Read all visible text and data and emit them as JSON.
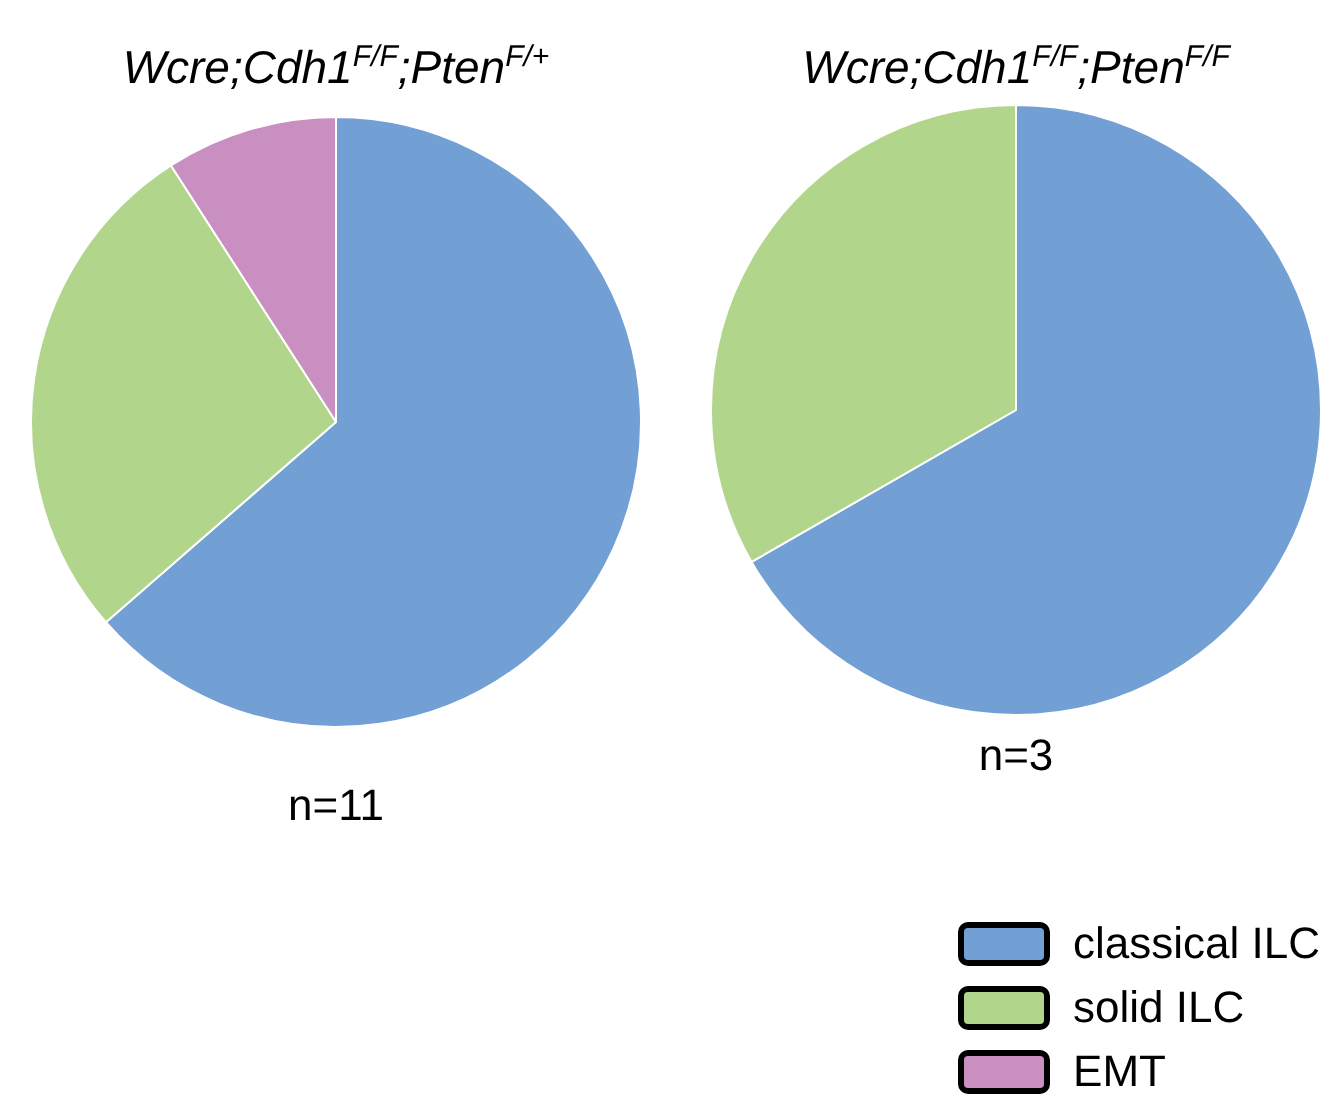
{
  "chart_data": [
    {
      "type": "pie",
      "title": "Wcre;Cdh1$^{F/F}$;Pten$^{F/+}$",
      "categories": [
        "classical ILC",
        "solid ILC",
        "EMT"
      ],
      "values": [
        63.6,
        27.3,
        9.1
      ],
      "colors": [
        "#729fd4",
        "#b1d68b",
        "#c98fc0"
      ],
      "annotations": [
        "n=11"
      ],
      "legend": "bottom right"
    },
    {
      "type": "pie",
      "title": "Wcre;Cdh1$^{F/F}$;Pten$^{F/F}$",
      "categories": [
        null,
        null
      ],
      "values": [
        66.7,
        33.3
      ],
      "colors": [
        "#729fd4",
        "#b1d68b"
      ],
      "annotations": [
        "n=3"
      ]
    }
  ]
}
